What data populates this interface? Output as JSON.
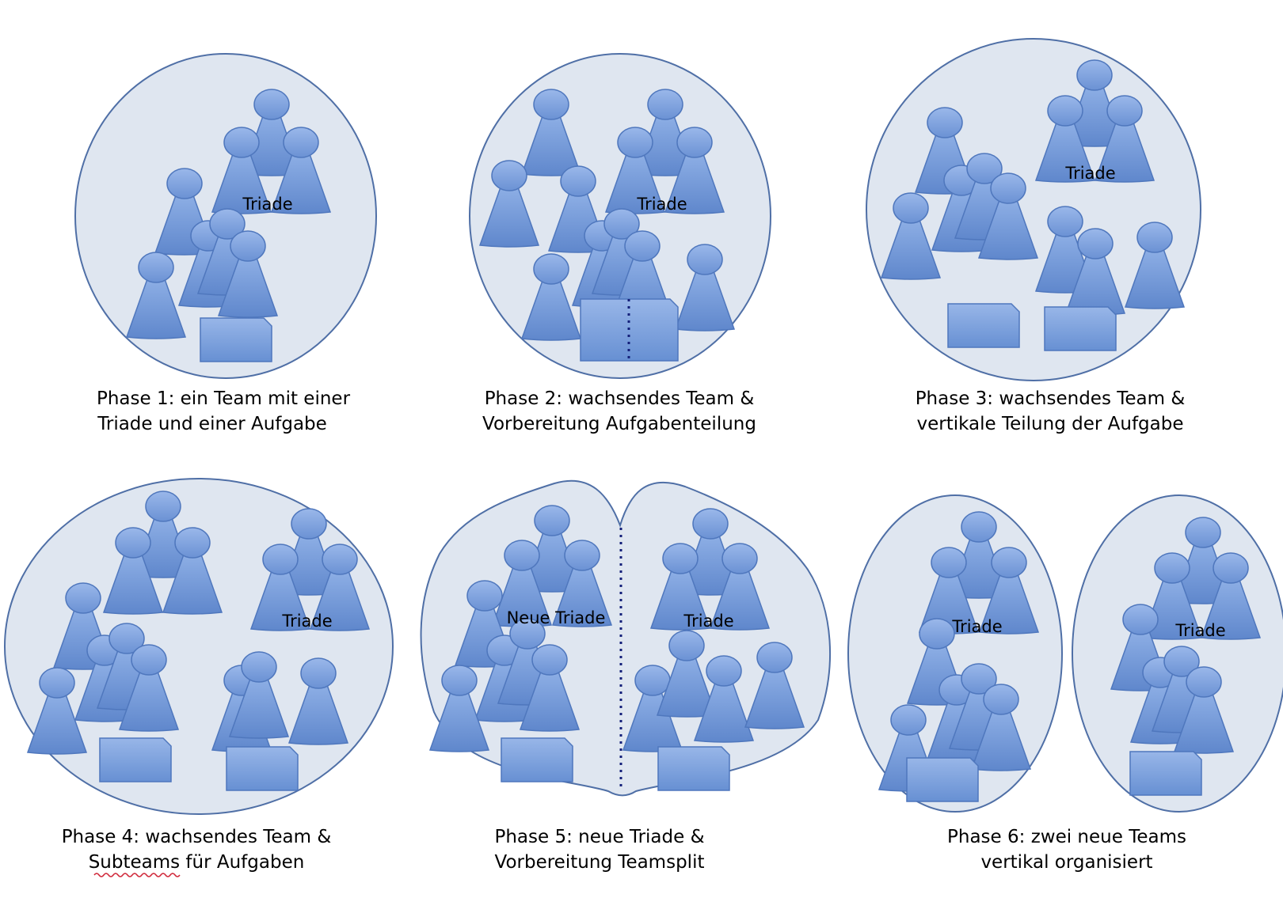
{
  "colors": {
    "container_fill": "#dfe6f0",
    "container_stroke": "#4f6fa6",
    "figure_fill": "#6f96d6",
    "figure_stroke": "#4f77bd",
    "split_line": "#14207a"
  },
  "phases": [
    {
      "caption_line1": "Phase 1: ein Team mit einer",
      "caption_line2": "Triade und einer Aufgabe",
      "triade_label": "Triade"
    },
    {
      "caption_line1": "Phase 2: wachsendes Team &",
      "caption_line2": "Vorbereitung Aufgabenteilung",
      "triade_label": "Triade"
    },
    {
      "caption_line1": "Phase 3: wachsendes Team &",
      "caption_line2": "vertikale Teilung der Aufgabe",
      "triade_label": "Triade"
    },
    {
      "caption_line1": "Phase 4: wachsendes Team &",
      "caption_line2": "Subteams für Aufgaben",
      "triade_label": "Triade"
    },
    {
      "caption_line1": "Phase 5: neue Triade &",
      "caption_line2": "Vorbereitung Teamsplit",
      "triade_label": "Triade",
      "new_triade_label": "Neue Triade"
    },
    {
      "caption_line1": "Phase 6: zwei neue Teams",
      "caption_line2": "vertikal organisiert",
      "triade_label_left": "Triade",
      "triade_label_right": "Triade"
    }
  ]
}
